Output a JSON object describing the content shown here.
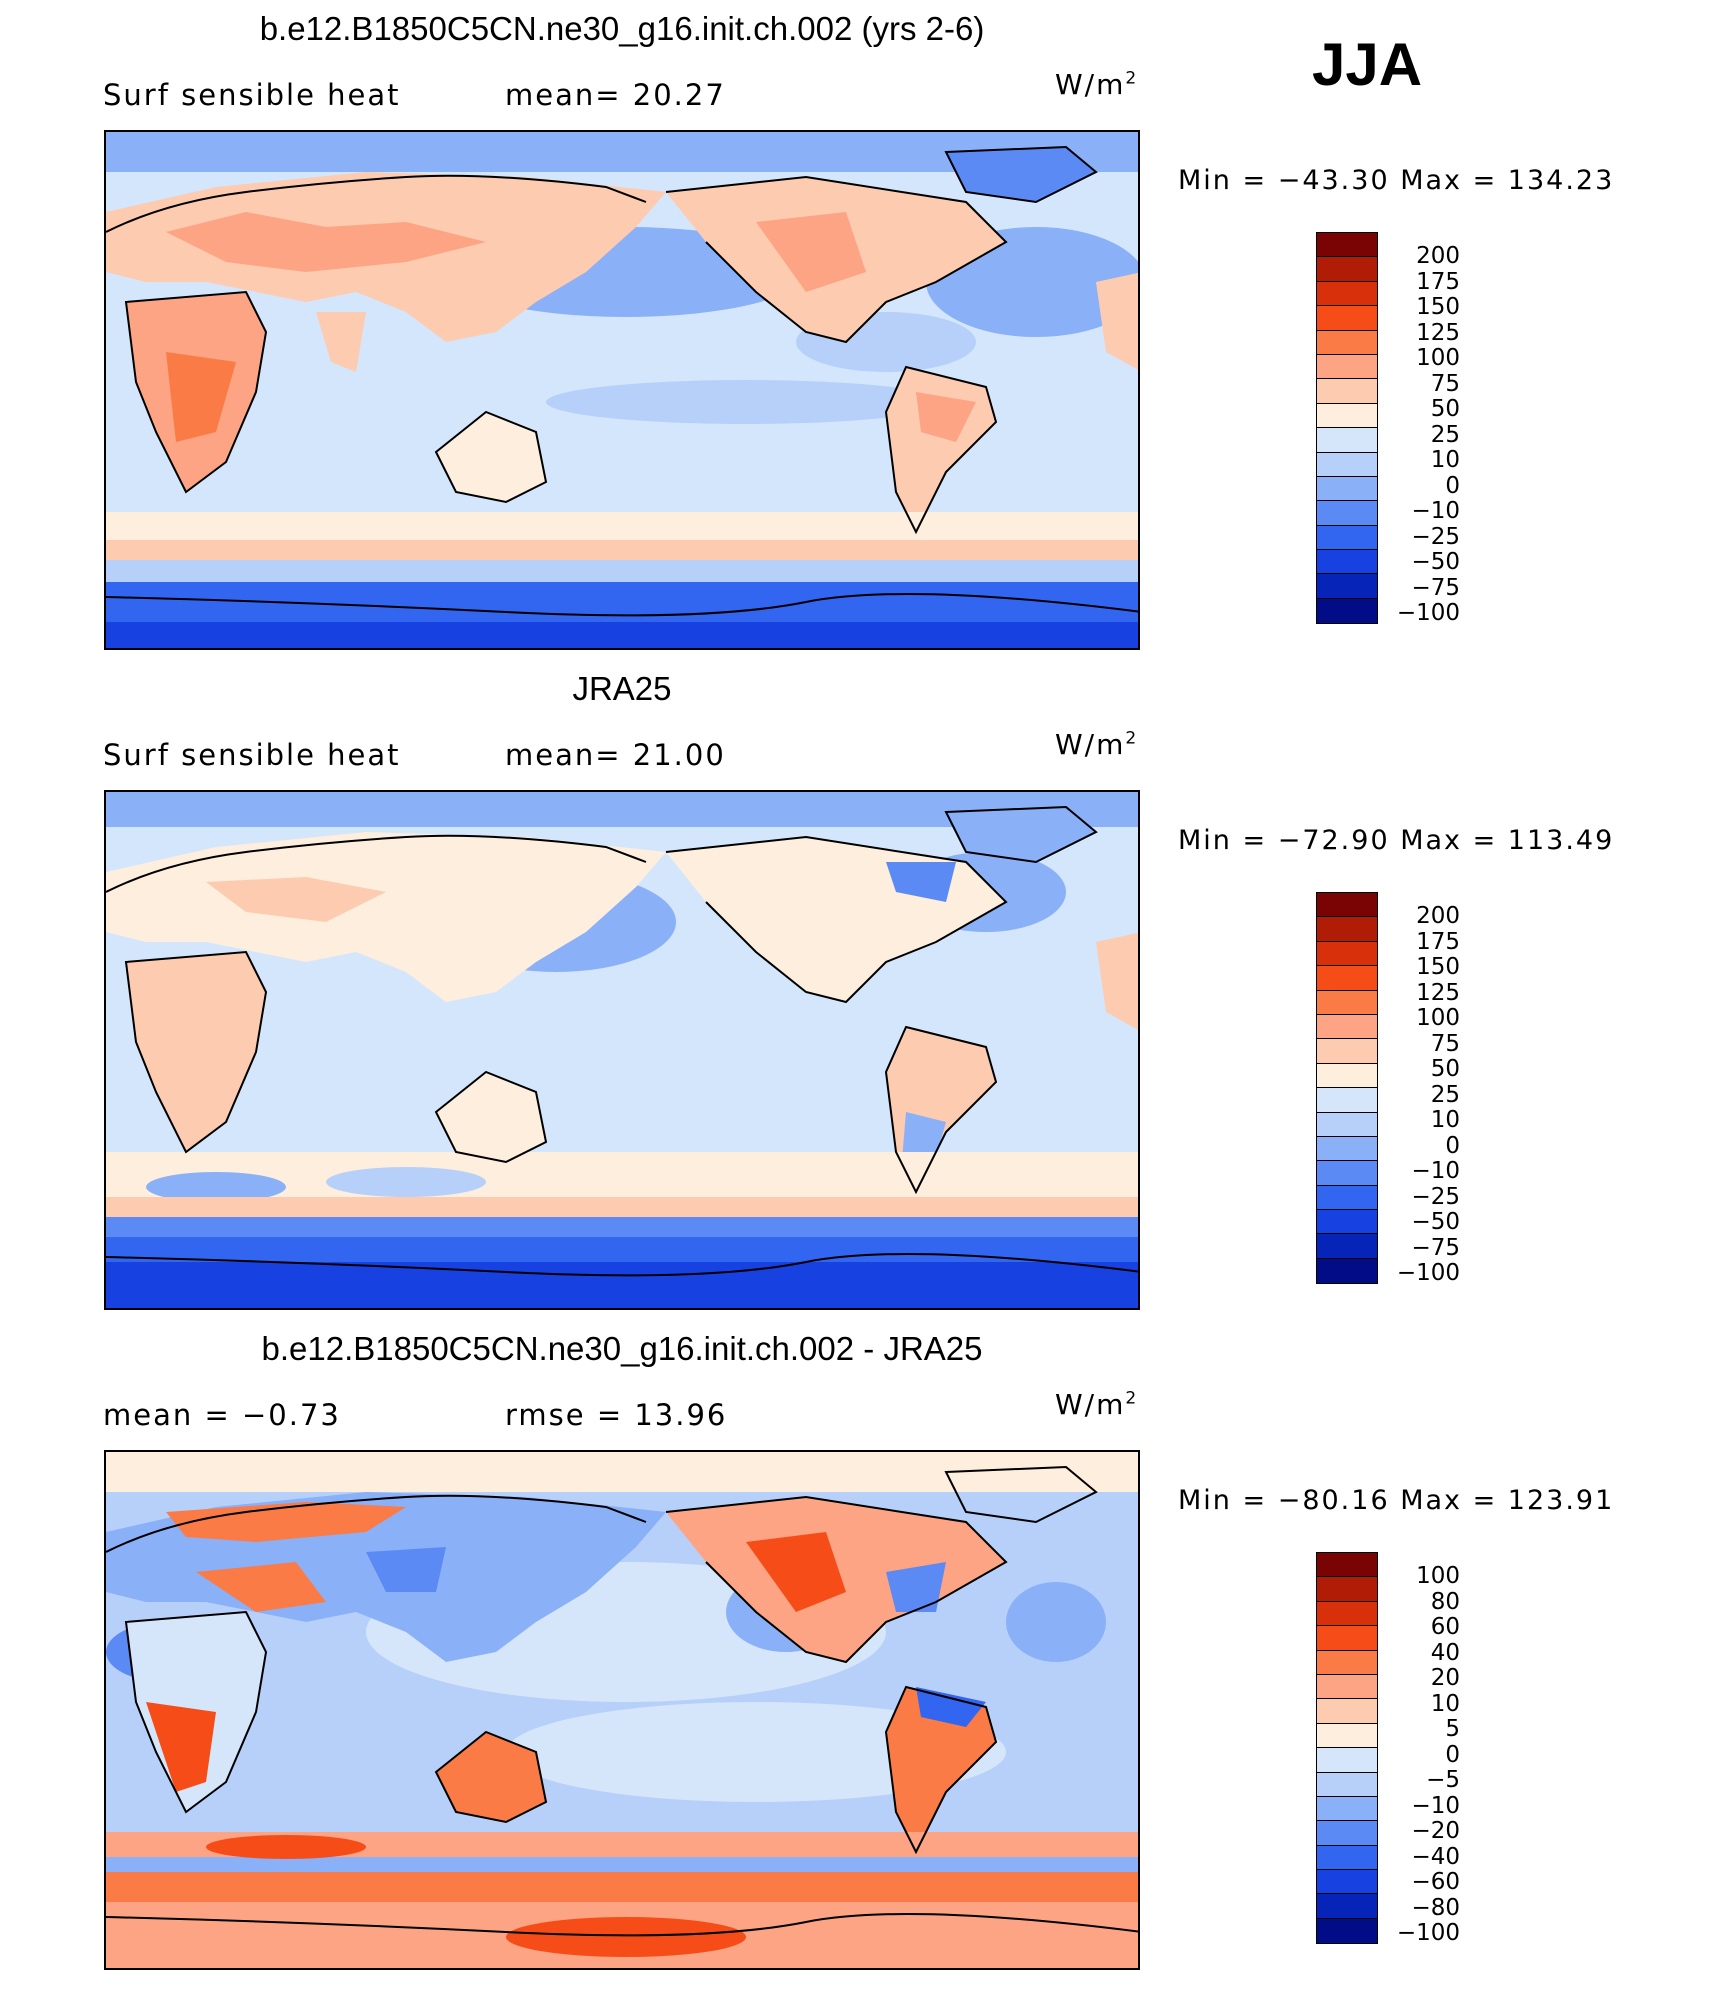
{
  "season": "JJA",
  "panels": [
    {
      "title": "b.e12.B1850C5CN.ne30_g16.init.ch.002 (yrs 2-6)",
      "left_label": "Surf  sensible  heat",
      "right_label": "mean=   20.27",
      "units": "W/m",
      "units_sup": "2",
      "minmax": "Min  =  −43.30  Max  =  134.23",
      "cbar_labels": [
        "200",
        "175",
        "150",
        "125",
        "100",
        "75",
        "50",
        "25",
        "10",
        "0",
        "−10",
        "−25",
        "−50",
        "−75",
        "−100"
      ],
      "cbar_colors": [
        "#7a0403",
        "#b11c07",
        "#d8300b",
        "#f64d18",
        "#fa7b45",
        "#fca484",
        "#fdcbb0",
        "#fdeede",
        "#d5e6fa",
        "#b7d0fa",
        "#8ab0f8",
        "#5b8af5",
        "#3265f0",
        "#1741e0",
        "#0624b8",
        "#020c86"
      ]
    },
    {
      "title": "JRA25",
      "left_label": "Surf  sensible  heat",
      "right_label": "mean=   21.00",
      "units": "W/m",
      "units_sup": "2",
      "minmax": "Min  =  −72.90  Max  =  113.49",
      "cbar_labels": [
        "200",
        "175",
        "150",
        "125",
        "100",
        "75",
        "50",
        "25",
        "10",
        "0",
        "−10",
        "−25",
        "−50",
        "−75",
        "−100"
      ],
      "cbar_colors": [
        "#7a0403",
        "#b11c07",
        "#d8300b",
        "#f64d18",
        "#fa7b45",
        "#fca484",
        "#fdcbb0",
        "#fdeede",
        "#d5e6fa",
        "#b7d0fa",
        "#8ab0f8",
        "#5b8af5",
        "#3265f0",
        "#1741e0",
        "#0624b8",
        "#020c86"
      ]
    },
    {
      "title": "b.e12.B1850C5CN.ne30_g16.init.ch.002 - JRA25",
      "left_label": "mean  =    −0.73",
      "right_label": "rmse  =    13.96",
      "units": "W/m",
      "units_sup": "2",
      "minmax": "Min  =  −80.16  Max  =  123.91",
      "cbar_labels": [
        "100",
        "80",
        "60",
        "40",
        "20",
        "10",
        "5",
        "0",
        "−5",
        "−10",
        "−20",
        "−40",
        "−60",
        "−80",
        "−100"
      ],
      "cbar_colors": [
        "#7a0403",
        "#b11c07",
        "#d8300b",
        "#f64d18",
        "#fa7b45",
        "#fca484",
        "#fdcbb0",
        "#fdeede",
        "#d5e6fa",
        "#b7d0fa",
        "#8ab0f8",
        "#5b8af5",
        "#3265f0",
        "#1741e0",
        "#0624b8",
        "#020c86"
      ]
    }
  ]
}
